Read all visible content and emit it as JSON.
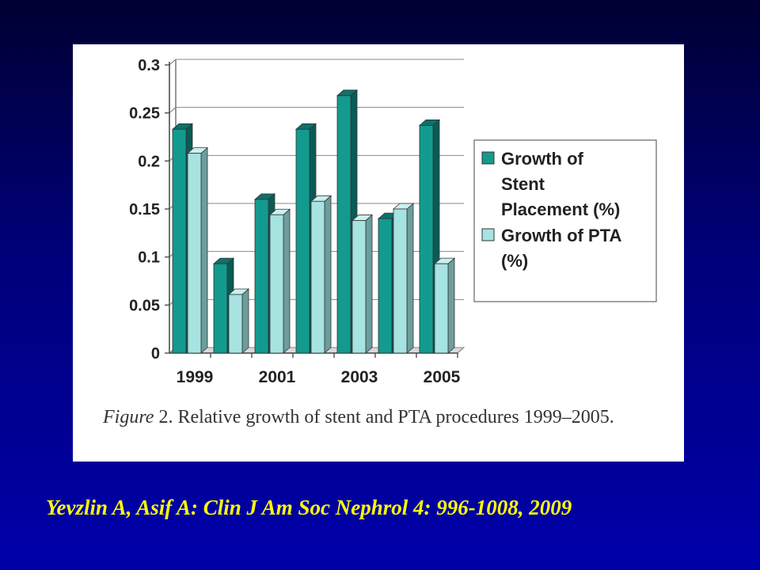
{
  "caption": {
    "figure_label": "Figure",
    "text": " 2. Relative growth of stent and PTA procedures 1999–2005."
  },
  "citation": "Yevzlin A, Asif A: Clin J Am Soc Nephrol 4: 996-1008, 2009",
  "colors": {
    "stent": "#139a8e",
    "stent_side": "#0a5b55",
    "stent_top": "#0e7169",
    "pta": "#a6e3e1",
    "pta_side": "#6c9e9d",
    "pta_top": "#c9f0ef",
    "citation": "#ffff00"
  },
  "chart_data": {
    "type": "bar",
    "categories": [
      "1999",
      "2000",
      "2001",
      "2002",
      "2003",
      "2004",
      "2005"
    ],
    "tick_labels": [
      "1999",
      "",
      "2001",
      "",
      "2003",
      "",
      "2005"
    ],
    "series": [
      {
        "name": "Growth of Stent Placement (%)",
        "values": [
          0.233,
          0.093,
          0.16,
          0.233,
          0.268,
          0.14,
          0.237
        ]
      },
      {
        "name": "Growth of PTA (%)",
        "values": [
          0.208,
          0.061,
          0.144,
          0.158,
          0.138,
          0.15,
          0.093
        ]
      }
    ],
    "ylim": [
      0,
      0.3
    ],
    "yticks": [
      "0",
      "0.05",
      "0.1",
      "0.15",
      "0.2",
      "0.25",
      "0.3"
    ],
    "legend": {
      "position": "right",
      "entries": [
        [
          "Growth of",
          "Stent",
          "Placement (%)"
        ],
        [
          "Growth of PTA",
          "(%)"
        ]
      ]
    },
    "grid": true
  }
}
